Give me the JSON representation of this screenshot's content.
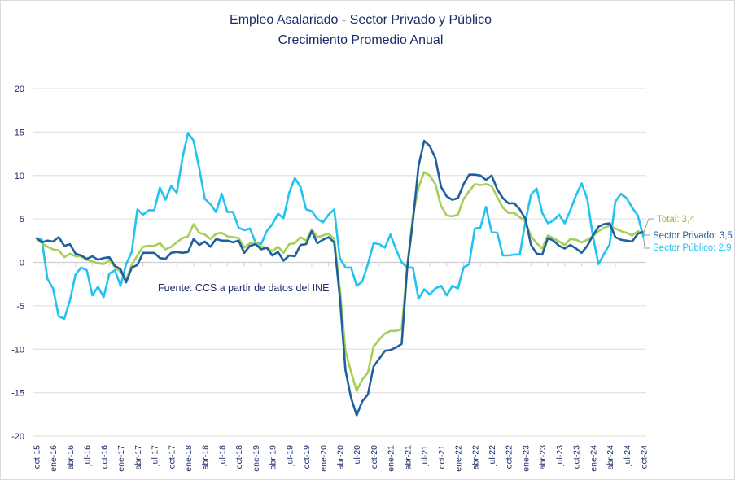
{
  "chart_data": {
    "type": "line",
    "title": "Empleo Asalariado - Sector Privado y Público",
    "subtitle": "Crecimiento Promedio Anual",
    "source_note": "Fuente: CCS a partir de datos del INE",
    "xlabel": "",
    "ylabel": "",
    "ylim": [
      -20,
      20
    ],
    "y_ticks": [
      "20",
      "15",
      "10",
      "5",
      "0",
      "-5",
      "-10",
      "-15",
      "-20"
    ],
    "y_tick_values": [
      20,
      15,
      10,
      5,
      0,
      -5,
      -10,
      -15,
      -20
    ],
    "grid": true,
    "x_start": "oct-15",
    "x_end": "oct-24",
    "x_frequency": "monthly",
    "x_tick_labels": [
      "oct-15",
      "ene-16",
      "abr-16",
      "jul-16",
      "oct-16",
      "ene-17",
      "abr-17",
      "jul-17",
      "oct-17",
      "ene-18",
      "abr-18",
      "jul-18",
      "oct-18",
      "ene-19",
      "abr-19",
      "jul-19",
      "oct-19",
      "ene-20",
      "abr-20",
      "jul-20",
      "oct-20",
      "ene-21",
      "abr-21",
      "jul-21",
      "oct-21",
      "ene-22",
      "abr-22",
      "jul-22",
      "oct-22",
      "ene-23",
      "abr-23",
      "jul-23",
      "oct-23",
      "ene-24",
      "abr-24",
      "jul-24",
      "oct-24"
    ],
    "series": [
      {
        "name": "Sector Público",
        "color": "#22c3f0",
        "end_label": "Sector Público: 2,9",
        "values": [
          2.8,
          2.6,
          -1.9,
          -3,
          -6.2,
          -6.5,
          -4.4,
          -1.4,
          -0.6,
          -0.9,
          -3.8,
          -2.8,
          -4,
          -1.3,
          -0.9,
          -2.7,
          -0.2,
          1.2,
          6.1,
          5.5,
          6,
          6,
          8.6,
          7.2,
          8.8,
          8,
          12,
          14.9,
          14,
          10.8,
          7.3,
          6.7,
          5.8,
          7.9,
          5.8,
          5.8,
          4,
          3.7,
          3.9,
          2.3,
          2.1,
          3.6,
          4.4,
          5.6,
          5.1,
          8,
          9.7,
          8.7,
          6.1,
          5.9,
          5,
          4.6,
          5.5,
          6.1,
          0.5,
          -0.6,
          -0.6,
          -2.7,
          -2.2,
          -0.2,
          2.2,
          2.1,
          1.7,
          3.2,
          1.5,
          0,
          -0.6,
          -0.6,
          -4.2,
          -3.1,
          -3.7,
          -3,
          -2.7,
          -3.8,
          -2.7,
          -3,
          -0.6,
          -0.2,
          3.9,
          4,
          6.4,
          3.5,
          3.4,
          0.8,
          0.8,
          0.9,
          0.9,
          4.7,
          7.8,
          8.5,
          5.7,
          4.5,
          4.8,
          5.5,
          4.5,
          6,
          7.7,
          9.1,
          7.3,
          3,
          -0.2,
          1,
          2.1,
          7,
          7.9,
          7.4,
          6.3,
          5.4,
          2.9
        ]
      },
      {
        "name": "Total",
        "color": "#a5cf56",
        "end_label": "Total: 3,4",
        "values": [
          2.9,
          2.2,
          1.8,
          1.5,
          1.4,
          0.6,
          1,
          0.7,
          0.7,
          0.3,
          0.1,
          -0.1,
          -0.2,
          0.3,
          -0.6,
          -1.1,
          -2,
          -0.3,
          0.8,
          1.8,
          1.9,
          1.9,
          2.2,
          1.5,
          1.8,
          2.3,
          2.8,
          3.0,
          4.4,
          3.4,
          3.2,
          2.7,
          3.3,
          3.4,
          3.0,
          2.9,
          2.8,
          1.7,
          2.2,
          2.3,
          1.8,
          1.7,
          1.3,
          1.8,
          1.1,
          2.1,
          2.2,
          2.9,
          2.5,
          3.8,
          2.9,
          3.1,
          3.3,
          2.7,
          -3,
          -10.2,
          -12.6,
          -14.8,
          -13.5,
          -12.7,
          -9.7,
          -8.9,
          -8.2,
          -7.9,
          -7.9,
          -7.7,
          -0.3,
          5.4,
          8.6,
          10.4,
          10,
          9,
          6.5,
          5.4,
          5.3,
          5.5,
          7.3,
          8.2,
          9,
          8.9,
          9,
          8.8,
          7.5,
          6.3,
          5.7,
          5.7,
          5.2,
          4.7,
          3,
          2.2,
          1.6,
          3.1,
          2.8,
          2.4,
          2,
          2.7,
          2.6,
          2.3,
          2.6,
          3,
          3.6,
          4,
          4.2,
          3.9,
          3.6,
          3.4,
          3.1,
          3.6,
          3.4
        ]
      },
      {
        "name": "Sector Privado",
        "color": "#1f5f9d",
        "end_label": "Sector Privado: 3,5",
        "values": [
          2.8,
          2.3,
          2.5,
          2.4,
          2.9,
          1.9,
          2.1,
          1.0,
          0.8,
          0.4,
          0.7,
          0.3,
          0.5,
          0.6,
          -0.4,
          -0.8,
          -2.3,
          -0.6,
          -0.3,
          1.1,
          1.1,
          1.1,
          0.5,
          0.4,
          1.1,
          1.2,
          1.1,
          1.2,
          2.7,
          2,
          2.4,
          1.8,
          2.7,
          2.5,
          2.5,
          2.3,
          2.5,
          1.1,
          1.9,
          2.1,
          1.5,
          1.7,
          0.8,
          1.2,
          0.2,
          0.8,
          0.7,
          2,
          2.1,
          3.6,
          2.2,
          2.6,
          2.9,
          2.3,
          -4,
          -12.4,
          -15.6,
          -17.6,
          -16,
          -15.2,
          -12,
          -11.1,
          -10.2,
          -10.1,
          -9.8,
          -9.4,
          -0.5,
          4.8,
          11.1,
          14,
          13.4,
          12,
          8.7,
          7.6,
          7.2,
          7.4,
          9,
          10.1,
          10.1,
          10,
          9.5,
          10,
          8.4,
          7.4,
          6.8,
          6.8,
          6.1,
          5,
          2,
          1,
          0.9,
          2.8,
          2.5,
          1.9,
          1.6,
          2,
          1.6,
          1.1,
          1.9,
          3.1,
          4.1,
          4.4,
          4.5,
          2.9,
          2.6,
          2.5,
          2.4,
          3.3,
          3.5
        ]
      }
    ],
    "legend": "end-of-line labels, right"
  }
}
